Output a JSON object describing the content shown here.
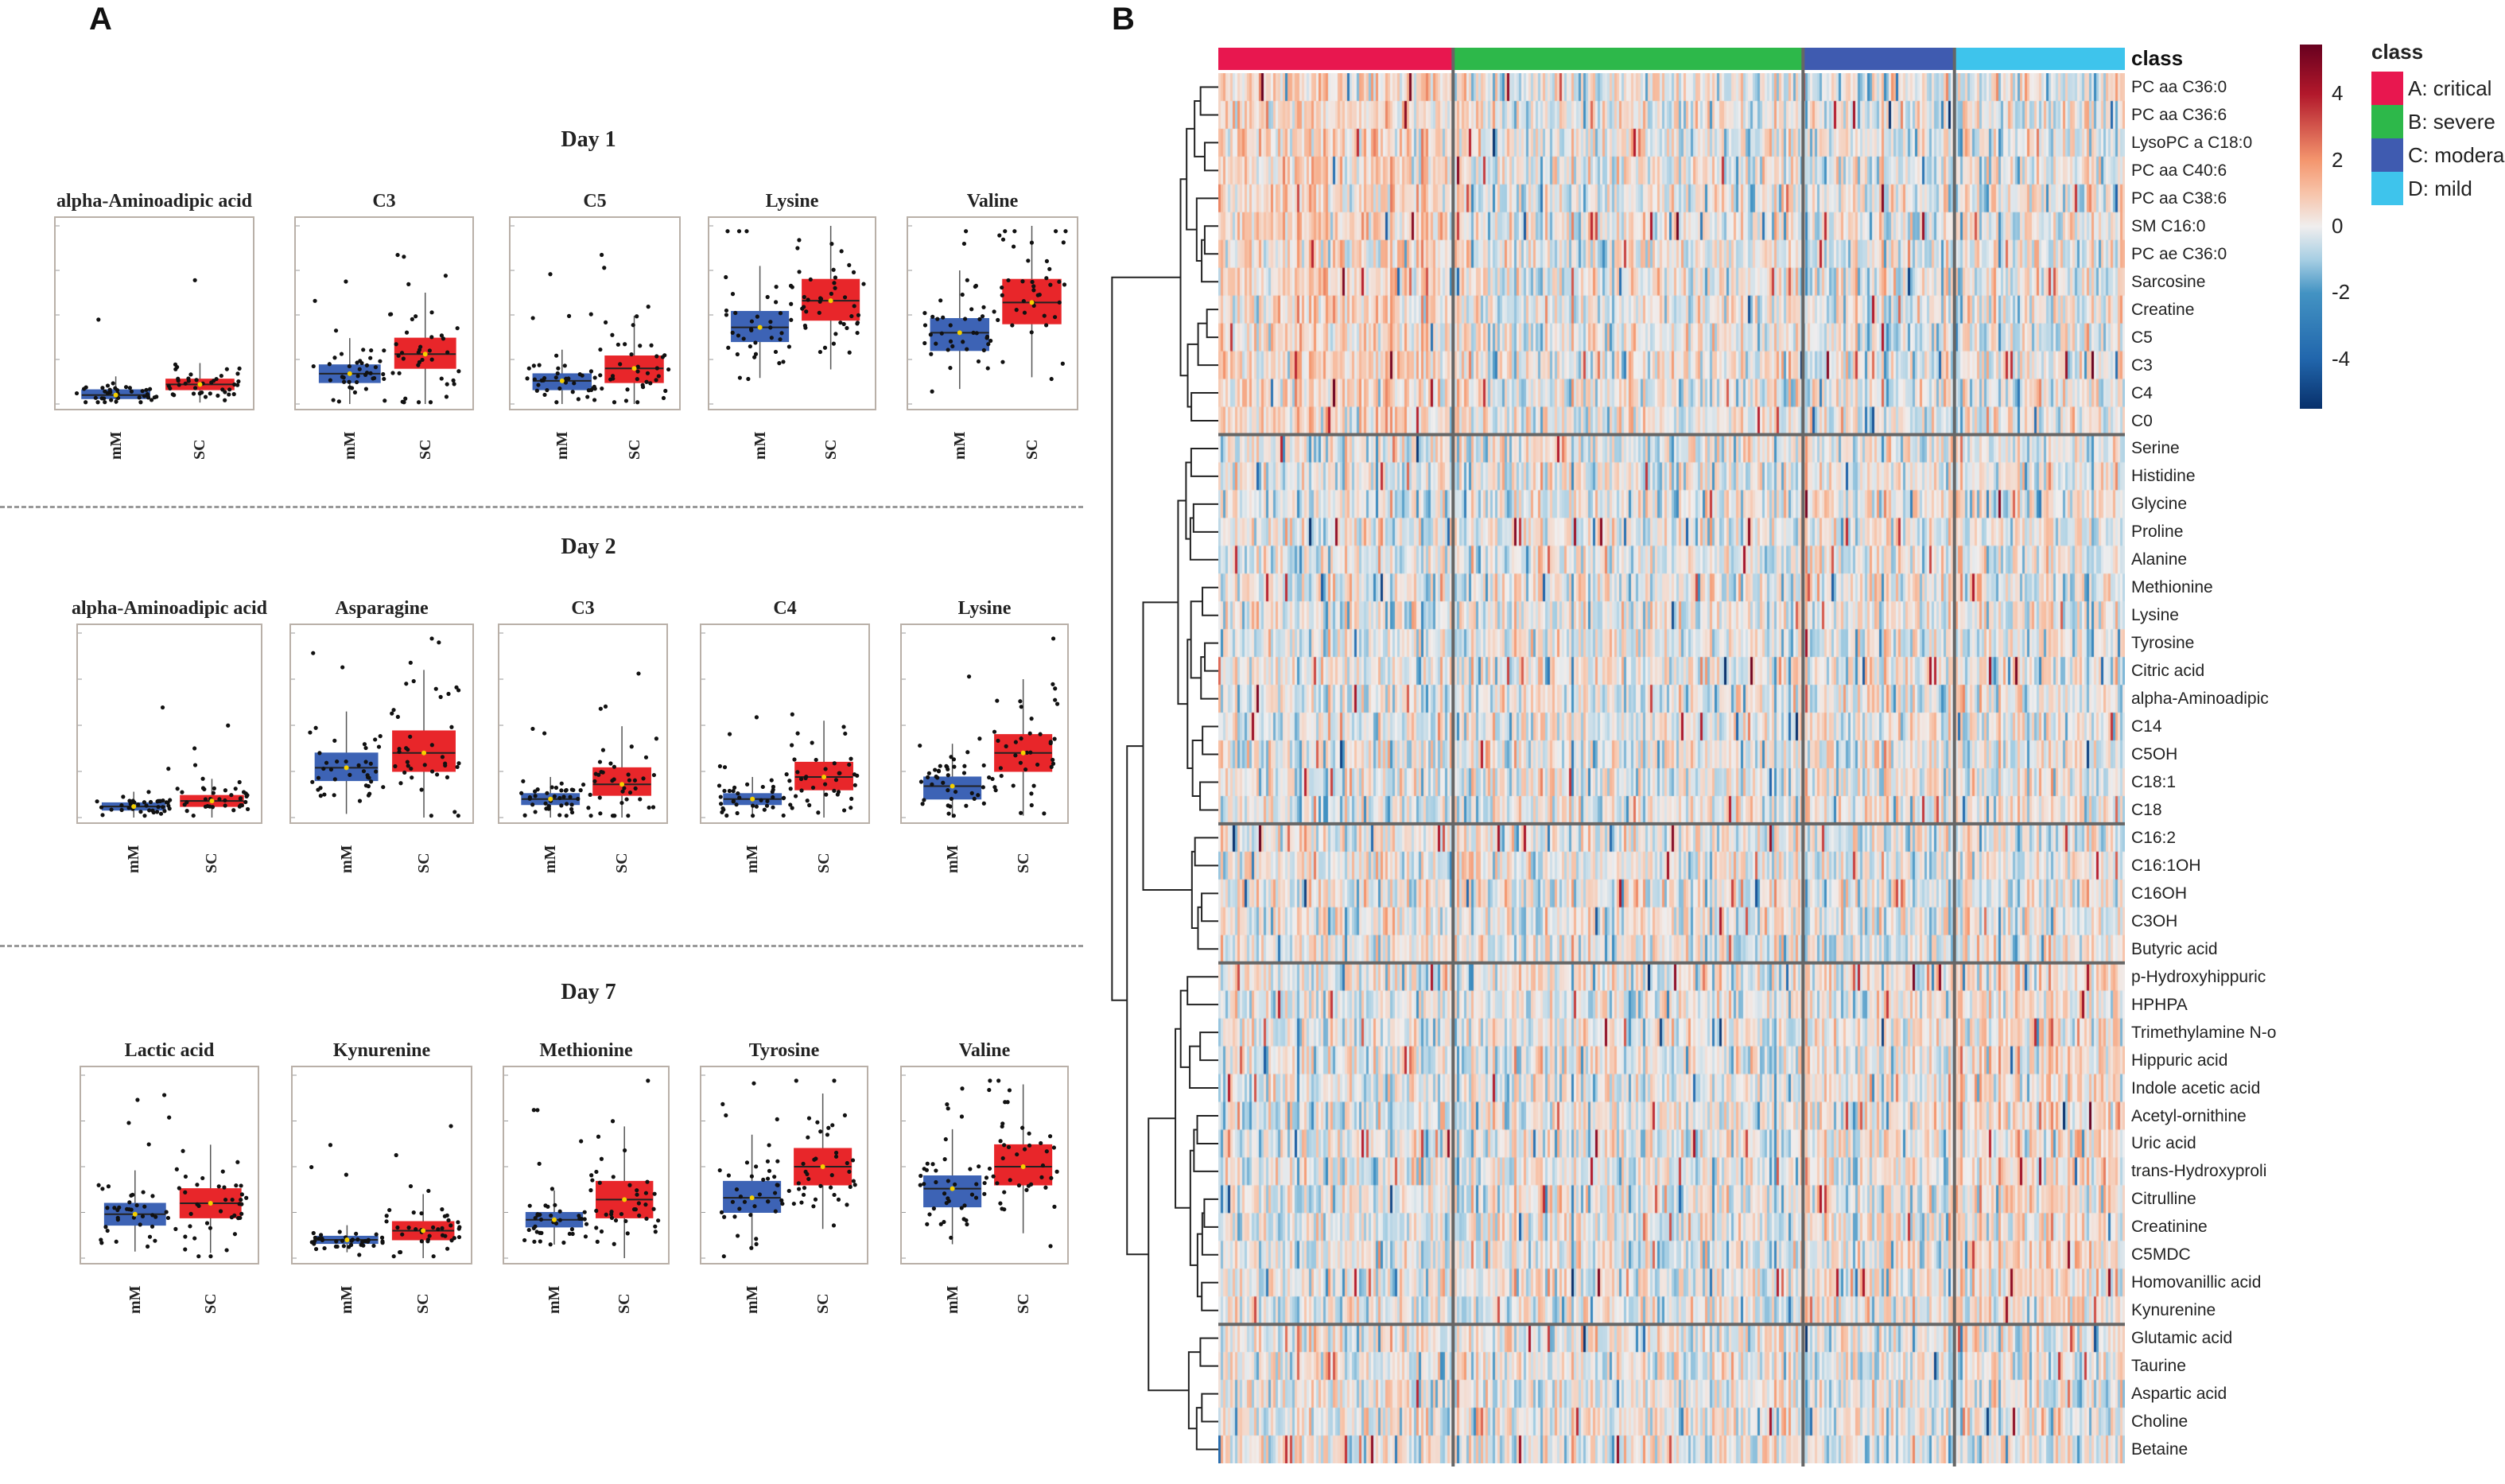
{
  "panel_labels": {
    "a": "A",
    "b": "B"
  },
  "chart_data": [
    {
      "type": "boxplot",
      "panel": "A",
      "groups": [
        "mM",
        "SC"
      ],
      "group_colors": {
        "mM": "#3d63b5",
        "SC": "#e8262a"
      },
      "ylim": [
        0,
        100
      ],
      "y_units": "relative",
      "days": [
        {
          "title": "Day 1",
          "plots": [
            {
              "title": "alpha-Aminoadipic acid",
              "mM": [
                3,
                5,
                8
              ],
              "SC": [
                8,
                11,
                14
              ]
            },
            {
              "title": "C3",
              "mM": [
                12,
                17,
                22
              ],
              "SC": [
                20,
                28,
                37
              ]
            },
            {
              "title": "C5",
              "mM": [
                8,
                13,
                17
              ],
              "SC": [
                12,
                20,
                27
              ]
            },
            {
              "title": "Lysine",
              "mM": [
                35,
                43,
                52
              ],
              "SC": [
                47,
                58,
                70
              ]
            },
            {
              "title": "Valine",
              "mM": [
                30,
                40,
                48
              ],
              "SC": [
                45,
                57,
                70
              ]
            }
          ]
        },
        {
          "title": "Day 2",
          "plots": [
            {
              "title": "alpha-Aminoadipic acid",
              "mM": [
                4,
                6,
                8
              ],
              "SC": [
                6,
                9,
                12
              ]
            },
            {
              "title": "Asparagine",
              "mM": [
                20,
                27,
                35
              ],
              "SC": [
                25,
                35,
                47
              ]
            },
            {
              "title": "C3",
              "mM": [
                7,
                10,
                13
              ],
              "SC": [
                12,
                18,
                27
              ]
            },
            {
              "title": "C4",
              "mM": [
                7,
                10,
                13
              ],
              "SC": [
                15,
                22,
                30
              ]
            },
            {
              "title": "Lysine",
              "mM": [
                10,
                17,
                22
              ],
              "SC": [
                25,
                35,
                45
              ]
            }
          ]
        },
        {
          "title": "Day 7",
          "plots": [
            {
              "title": "Lactic acid",
              "mM": [
                18,
                24,
                30
              ],
              "SC": [
                22,
                30,
                38
              ]
            },
            {
              "title": "Kynurenine",
              "mM": [
                8,
                10,
                12
              ],
              "SC": [
                10,
                15,
                20
              ]
            },
            {
              "title": "Methionine",
              "mM": [
                17,
                21,
                25
              ],
              "SC": [
                22,
                32,
                42
              ]
            },
            {
              "title": "Tyrosine",
              "mM": [
                25,
                33,
                42
              ],
              "SC": [
                40,
                50,
                60
              ]
            },
            {
              "title": "Valine",
              "mM": [
                28,
                38,
                45
              ],
              "SC": [
                40,
                50,
                62
              ]
            }
          ]
        }
      ]
    },
    {
      "type": "heatmap",
      "panel": "B",
      "annotation_label": "class",
      "classes": [
        {
          "label": "A: critical",
          "color": "#e8174f",
          "fraction": 0.259
        },
        {
          "label": "B: severe",
          "color": "#2db84a",
          "fraction": 0.386
        },
        {
          "label": "C: modera",
          "color": "#3f5bb0",
          "fraction": 0.167
        },
        {
          "label": "D: mild",
          "color": "#3ec4ec",
          "fraction": 0.188
        }
      ],
      "rows": [
        "PC aa C36:0",
        "PC aa C36:6",
        "LysoPC a C18:0",
        "PC aa C40:6",
        "PC aa C38:6",
        "SM C16:0",
        "PC ae C36:0",
        "Sarcosine",
        "Creatine",
        "C5",
        "C3",
        "C4",
        "C0",
        "Serine",
        "Histidine",
        "Glycine",
        "Proline",
        "Alanine",
        "Methionine",
        "Lysine",
        "Tyrosine",
        "Citric acid",
        "alpha-Aminoadipic",
        "C14",
        "C5OH",
        "C18:1",
        "C18",
        "C16:2",
        "C16:1OH",
        "C16OH",
        "C3OH",
        "Butyric acid",
        "p-Hydroxyhippuric",
        "HPHPA",
        "Trimethylamine N-o",
        "Hippuric acid",
        "Indole acetic acid",
        "Acetyl-ornithine",
        "Uric acid",
        "trans-Hydroxyproli",
        "Citrulline",
        "Creatinine",
        "C5MDC",
        "Homovanillic acid",
        "Kynurenine",
        "Glutamic acid",
        "Taurine",
        "Aspartic acid",
        "Choline",
        "Betaine"
      ],
      "row_cluster_breaks_after": [
        12,
        26,
        31,
        44
      ],
      "colorbar": {
        "ticks": [
          "4",
          "2",
          "0",
          "-2",
          "-4"
        ],
        "tick_values": [
          4,
          2,
          0,
          -2,
          -4
        ],
        "range": [
          -5.5,
          5.5
        ]
      }
    }
  ]
}
